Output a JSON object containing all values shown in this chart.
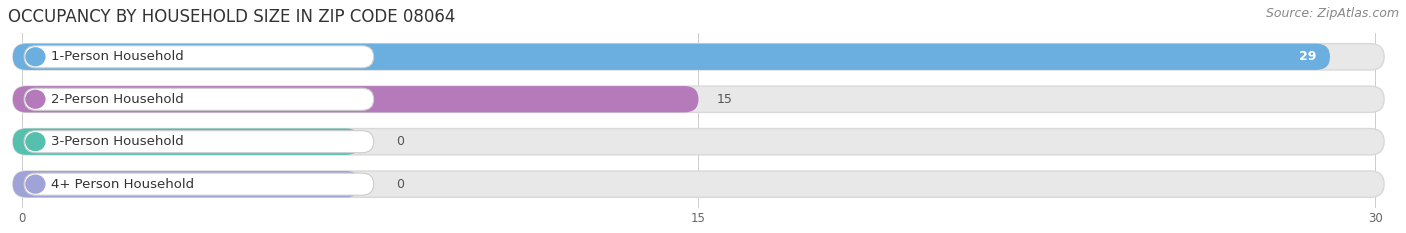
{
  "title": "OCCUPANCY BY HOUSEHOLD SIZE IN ZIP CODE 08064",
  "source": "Source: ZipAtlas.com",
  "categories": [
    "1-Person Household",
    "2-Person Household",
    "3-Person Household",
    "4+ Person Household"
  ],
  "values": [
    29,
    15,
    0,
    0
  ],
  "bar_colors": [
    "#6aafe0",
    "#b47aba",
    "#55c0ae",
    "#9fa3d8"
  ],
  "xlim_max": 30,
  "xticks": [
    0,
    15,
    30
  ],
  "background_color": "#ffffff",
  "track_color": "#e8e8e8",
  "track_border_color": "#d8d8d8",
  "title_fontsize": 12,
  "source_fontsize": 9,
  "label_fontsize": 9.5,
  "value_fontsize": 9
}
